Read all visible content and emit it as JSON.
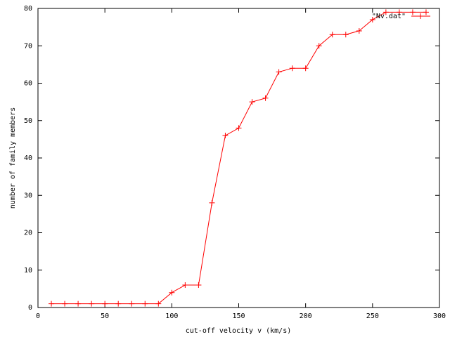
{
  "chart_data": {
    "type": "line",
    "xlabel": "cut-off velocity v (km/s)",
    "ylabel": "number of family members",
    "x": [
      10,
      20,
      30,
      40,
      50,
      60,
      70,
      80,
      90,
      100,
      110,
      120,
      130,
      140,
      150,
      160,
      170,
      180,
      190,
      200,
      210,
      220,
      230,
      240,
      250,
      260,
      270,
      280,
      290
    ],
    "series": [
      {
        "name": "\"Nv.dat\"",
        "color": "#ff0000",
        "values": [
          1,
          1,
          1,
          1,
          1,
          1,
          1,
          1,
          1,
          4,
          6,
          6,
          28,
          46,
          48,
          55,
          56,
          63,
          64,
          64,
          70,
          73,
          73,
          74,
          77,
          79,
          79,
          79,
          79
        ]
      }
    ],
    "xlim": [
      0,
      300
    ],
    "xticks": [
      0,
      50,
      100,
      150,
      200,
      250,
      300
    ],
    "ylim": [
      0,
      80
    ],
    "yticks": [
      0,
      10,
      20,
      30,
      40,
      50,
      60,
      70,
      80
    ],
    "grid": false,
    "legend": "top-right"
  }
}
